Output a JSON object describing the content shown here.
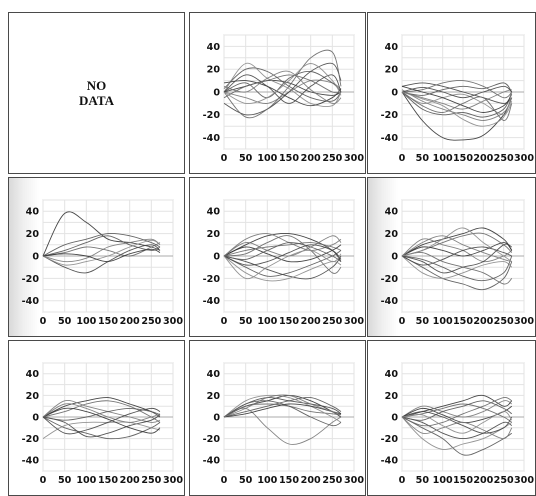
{
  "no_data": {
    "line1": "NO",
    "line2": "DATA"
  },
  "axes": {
    "xticks": [
      0,
      50,
      100,
      150,
      200,
      250,
      300
    ],
    "yticks": [
      40,
      20,
      0,
      -20,
      -40
    ],
    "xlim": [
      0,
      300
    ],
    "ylim": [
      -50,
      50
    ],
    "grid": true
  },
  "chart_data": [
    {
      "type": "line",
      "panel": 1,
      "x": [
        0,
        50,
        100,
        150,
        200,
        250,
        270
      ],
      "series": [
        {
          "values": [
            0,
            5,
            10,
            8,
            0,
            -3,
            0
          ]
        },
        {
          "values": [
            3,
            20,
            18,
            5,
            -5,
            -8,
            0
          ]
        },
        {
          "values": [
            0,
            -5,
            -10,
            0,
            10,
            8,
            2
          ]
        },
        {
          "values": [
            -10,
            -20,
            -15,
            0,
            18,
            25,
            10
          ]
        },
        {
          "values": [
            0,
            -22,
            -15,
            5,
            30,
            35,
            5
          ]
        },
        {
          "values": [
            0,
            25,
            12,
            3,
            -10,
            -12,
            0
          ]
        },
        {
          "values": [
            8,
            10,
            5,
            -5,
            -12,
            -5,
            3
          ]
        },
        {
          "values": [
            0,
            8,
            -5,
            12,
            18,
            8,
            0
          ]
        },
        {
          "values": [
            5,
            0,
            12,
            18,
            2,
            -10,
            -5
          ]
        },
        {
          "values": [
            0,
            15,
            5,
            -10,
            5,
            15,
            0
          ]
        },
        {
          "values": [
            -5,
            5,
            10,
            15,
            10,
            0,
            0
          ]
        },
        {
          "values": [
            0,
            -10,
            -5,
            10,
            25,
            10,
            -3
          ]
        }
      ]
    },
    {
      "type": "line",
      "panel": 2,
      "x": [
        0,
        50,
        100,
        150,
        200,
        250,
        270
      ],
      "series": [
        {
          "values": [
            0,
            -25,
            -40,
            -42,
            -38,
            -20,
            -5
          ]
        },
        {
          "values": [
            0,
            -15,
            -20,
            -18,
            -22,
            -15,
            0
          ]
        },
        {
          "values": [
            0,
            -5,
            -10,
            -15,
            -8,
            0,
            2
          ]
        },
        {
          "values": [
            5,
            8,
            5,
            0,
            -5,
            -10,
            -5
          ]
        },
        {
          "values": [
            0,
            2,
            8,
            10,
            5,
            -5,
            0
          ]
        },
        {
          "values": [
            0,
            -10,
            -5,
            -2,
            -10,
            -20,
            -8
          ]
        },
        {
          "values": [
            5,
            0,
            -5,
            -12,
            -18,
            -12,
            -2
          ]
        },
        {
          "values": [
            0,
            -3,
            2,
            5,
            3,
            8,
            0
          ]
        },
        {
          "values": [
            2,
            -8,
            -15,
            -20,
            -25,
            -18,
            -5
          ]
        },
        {
          "values": [
            0,
            4,
            0,
            -5,
            0,
            5,
            0
          ]
        },
        {
          "values": [
            0,
            -12,
            -18,
            -10,
            -5,
            -25,
            -10
          ]
        },
        {
          "values": [
            0,
            -6,
            -12,
            -24,
            -30,
            -22,
            0
          ]
        }
      ]
    },
    {
      "type": "line",
      "panel": 3,
      "x": [
        0,
        50,
        100,
        150,
        200,
        250,
        270
      ],
      "series": [
        {
          "values": [
            0,
            38,
            30,
            15,
            12,
            8,
            5
          ]
        },
        {
          "values": [
            0,
            5,
            12,
            18,
            10,
            5,
            8
          ]
        },
        {
          "values": [
            0,
            -5,
            -2,
            8,
            12,
            15,
            10
          ]
        },
        {
          "values": [
            0,
            -10,
            -15,
            -5,
            5,
            10,
            5
          ]
        },
        {
          "values": [
            0,
            3,
            8,
            5,
            0,
            8,
            12
          ]
        },
        {
          "values": [
            0,
            -8,
            -5,
            0,
            8,
            14,
            10
          ]
        },
        {
          "values": [
            0,
            2,
            0,
            -5,
            2,
            6,
            3
          ]
        },
        {
          "values": [
            0,
            10,
            15,
            20,
            18,
            12,
            8
          ]
        }
      ]
    },
    {
      "type": "line",
      "panel": 4,
      "x": [
        0,
        50,
        100,
        150,
        200,
        250,
        270
      ],
      "series": [
        {
          "values": [
            0,
            10,
            18,
            20,
            15,
            5,
            -5
          ]
        },
        {
          "values": [
            0,
            -10,
            -18,
            -15,
            -8,
            0,
            5
          ]
        },
        {
          "values": [
            0,
            15,
            20,
            12,
            5,
            10,
            15
          ]
        },
        {
          "values": [
            0,
            -5,
            -12,
            -18,
            -20,
            -10,
            0
          ]
        },
        {
          "values": [
            0,
            5,
            8,
            10,
            12,
            8,
            5
          ]
        },
        {
          "values": [
            0,
            -15,
            -22,
            -20,
            -12,
            -5,
            -8
          ]
        },
        {
          "values": [
            0,
            8,
            2,
            -5,
            -3,
            5,
            10
          ]
        },
        {
          "values": [
            0,
            -3,
            5,
            12,
            8,
            0,
            -5
          ]
        },
        {
          "values": [
            0,
            12,
            5,
            0,
            8,
            18,
            12
          ]
        },
        {
          "values": [
            0,
            -8,
            -5,
            3,
            10,
            5,
            -3
          ]
        },
        {
          "values": [
            0,
            2,
            12,
            18,
            5,
            -15,
            -10
          ]
        },
        {
          "values": [
            0,
            -20,
            -10,
            0,
            5,
            -5,
            2
          ]
        }
      ]
    },
    {
      "type": "line",
      "panel": 5,
      "x": [
        0,
        50,
        100,
        150,
        200,
        250,
        270
      ],
      "series": [
        {
          "values": [
            0,
            10,
            15,
            20,
            25,
            15,
            5
          ]
        },
        {
          "values": [
            0,
            -10,
            -20,
            -25,
            -30,
            -20,
            -5
          ]
        },
        {
          "values": [
            0,
            15,
            10,
            5,
            -5,
            0,
            5
          ]
        },
        {
          "values": [
            0,
            -5,
            -15,
            -10,
            -5,
            10,
            8
          ]
        },
        {
          "values": [
            0,
            5,
            12,
            18,
            20,
            10,
            3
          ]
        },
        {
          "values": [
            0,
            -15,
            -20,
            -15,
            -8,
            -5,
            -10
          ]
        },
        {
          "values": [
            0,
            8,
            5,
            0,
            5,
            12,
            5
          ]
        },
        {
          "values": [
            0,
            -3,
            -10,
            -18,
            -22,
            -15,
            0
          ]
        },
        {
          "values": [
            0,
            12,
            18,
            10,
            3,
            -3,
            -5
          ]
        },
        {
          "values": [
            0,
            -8,
            -3,
            5,
            8,
            3,
            0
          ]
        },
        {
          "values": [
            0,
            3,
            -5,
            -10,
            -15,
            -25,
            -20
          ]
        },
        {
          "values": [
            0,
            5,
            15,
            25,
            12,
            0,
            -5
          ]
        }
      ]
    },
    {
      "type": "line",
      "panel": 6,
      "x": [
        0,
        50,
        100,
        150,
        200,
        250,
        270
      ],
      "series": [
        {
          "values": [
            0,
            10,
            15,
            18,
            12,
            5,
            0
          ]
        },
        {
          "values": [
            0,
            -10,
            -15,
            -20,
            -18,
            -10,
            -5
          ]
        },
        {
          "values": [
            0,
            15,
            10,
            5,
            0,
            -5,
            -3
          ]
        },
        {
          "values": [
            0,
            -5,
            -18,
            -15,
            -8,
            -3,
            2
          ]
        },
        {
          "values": [
            0,
            5,
            12,
            15,
            10,
            0,
            -5
          ]
        },
        {
          "values": [
            -20,
            -8,
            -5,
            -5,
            -5,
            -10,
            -12
          ]
        },
        {
          "values": [
            0,
            8,
            5,
            -2,
            -10,
            -15,
            -10
          ]
        },
        {
          "values": [
            0,
            -3,
            0,
            5,
            8,
            5,
            2
          ]
        },
        {
          "values": [
            0,
            12,
            8,
            0,
            -5,
            0,
            3
          ]
        },
        {
          "values": [
            0,
            -15,
            -12,
            -5,
            3,
            8,
            5
          ]
        }
      ]
    },
    {
      "type": "line",
      "panel": 7,
      "x": [
        0,
        50,
        100,
        150,
        200,
        250,
        270
      ],
      "series": [
        {
          "values": [
            0,
            10,
            15,
            20,
            15,
            5,
            0
          ]
        },
        {
          "values": [
            0,
            5,
            10,
            15,
            18,
            10,
            5
          ]
        },
        {
          "values": [
            0,
            8,
            -10,
            -25,
            -20,
            -5,
            0
          ]
        },
        {
          "values": [
            0,
            12,
            18,
            15,
            12,
            8,
            3
          ]
        },
        {
          "values": [
            0,
            10,
            12,
            10,
            5,
            3,
            2
          ]
        },
        {
          "values": [
            0,
            15,
            20,
            18,
            10,
            0,
            -5
          ]
        },
        {
          "values": [
            0,
            3,
            8,
            12,
            10,
            5,
            3
          ]
        },
        {
          "values": [
            0,
            12,
            15,
            10,
            0,
            -8,
            -5
          ]
        },
        {
          "values": [
            0,
            8,
            18,
            20,
            12,
            5,
            2
          ]
        }
      ]
    },
    {
      "type": "line",
      "panel": 8,
      "x": [
        0,
        50,
        100,
        150,
        200,
        250,
        270
      ],
      "series": [
        {
          "values": [
            0,
            5,
            10,
            15,
            20,
            10,
            15
          ]
        },
        {
          "values": [
            0,
            -10,
            -20,
            -35,
            -30,
            -20,
            -15
          ]
        },
        {
          "values": [
            0,
            10,
            5,
            0,
            5,
            15,
            12
          ]
        },
        {
          "values": [
            0,
            -5,
            -15,
            -20,
            -15,
            -5,
            -8
          ]
        },
        {
          "values": [
            0,
            3,
            8,
            12,
            8,
            0,
            -5
          ]
        },
        {
          "values": [
            0,
            -20,
            -30,
            -25,
            -20,
            -10,
            -5
          ]
        },
        {
          "values": [
            0,
            8,
            2,
            -5,
            -2,
            5,
            10
          ]
        },
        {
          "values": [
            0,
            -3,
            5,
            10,
            15,
            8,
            3
          ]
        },
        {
          "values": [
            0,
            -15,
            -10,
            -5,
            -12,
            -20,
            -10
          ]
        },
        {
          "values": [
            0,
            5,
            0,
            -8,
            -15,
            -10,
            0
          ]
        },
        {
          "values": [
            0,
            -8,
            -5,
            3,
            10,
            18,
            15
          ]
        },
        {
          "values": [
            0,
            2,
            -8,
            -15,
            -5,
            5,
            -3
          ]
        }
      ]
    }
  ]
}
